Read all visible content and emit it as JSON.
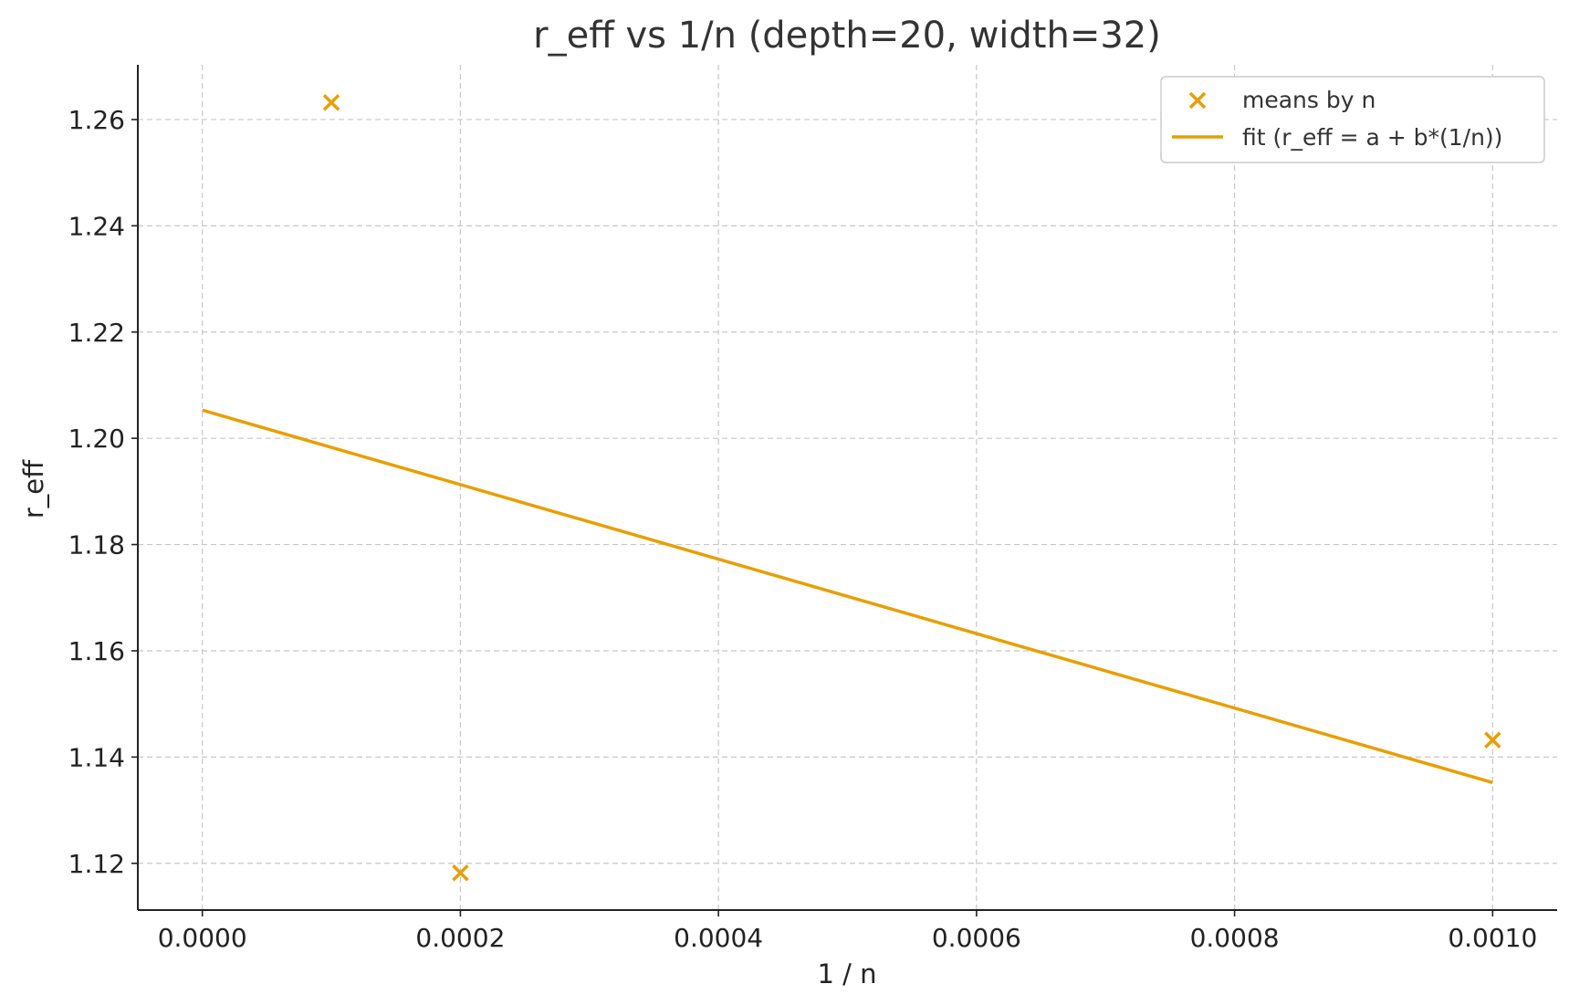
{
  "chart_data": {
    "type": "scatter",
    "title": "r_eff vs 1/n (depth=20, width=32)",
    "xlabel": "1 / n",
    "ylabel": "r_eff",
    "xlim": [
      -5e-05,
      0.00105
    ],
    "ylim": [
      1.1112,
      1.2703
    ],
    "x_ticks": [
      "0.0000",
      "0.0002",
      "0.0004",
      "0.0006",
      "0.0008",
      "0.0010"
    ],
    "x_tick_values": [
      0.0,
      0.0002,
      0.0004,
      0.0006,
      0.0008,
      0.001
    ],
    "y_ticks": [
      "1.12",
      "1.14",
      "1.16",
      "1.18",
      "1.20",
      "1.22",
      "1.24",
      "1.26"
    ],
    "y_tick_values": [
      1.12,
      1.14,
      1.16,
      1.18,
      1.2,
      1.22,
      1.24,
      1.26
    ],
    "grid": true,
    "legend_position": "top-right",
    "series": [
      {
        "name": "means by n",
        "kind": "scatter",
        "marker": "x",
        "color": "#E69F00",
        "x": [
          0.0001,
          0.0002,
          0.001
        ],
        "y": [
          1.2632,
          1.1182,
          1.1432
        ]
      },
      {
        "name": "fit (r_eff = a + b*(1/n))",
        "kind": "line",
        "color": "#E69F00",
        "x": [
          0.0,
          0.001
        ],
        "y": [
          1.2053,
          1.1352
        ]
      }
    ]
  }
}
